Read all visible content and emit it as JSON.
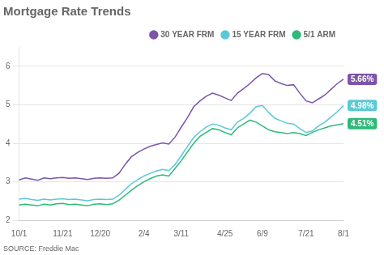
{
  "chart_data": {
    "type": "line",
    "title": "Mortgage Rate Trends",
    "categories": [
      "10/1",
      null,
      null,
      null,
      null,
      null,
      null,
      "11/21",
      null,
      null,
      null,
      null,
      null,
      "12/20",
      null,
      null,
      null,
      null,
      null,
      null,
      "2/4",
      null,
      null,
      null,
      null,
      null,
      "3/11",
      null,
      null,
      null,
      null,
      null,
      null,
      "4/25",
      null,
      null,
      null,
      null,
      null,
      "6/9",
      null,
      null,
      null,
      null,
      null,
      null,
      "7/21",
      null,
      null,
      null,
      null,
      null,
      "8/1"
    ],
    "series": [
      {
        "name": "30 YEAR FRM",
        "color": "#7b55a7",
        "values": [
          3.05,
          3.1,
          3.07,
          3.04,
          3.1,
          3.08,
          3.1,
          3.11,
          3.09,
          3.1,
          3.08,
          3.06,
          3.09,
          3.1,
          3.09,
          3.1,
          3.22,
          3.45,
          3.65,
          3.76,
          3.85,
          3.92,
          3.97,
          4.01,
          3.98,
          4.16,
          4.42,
          4.67,
          4.95,
          5.1,
          5.22,
          5.3,
          5.25,
          5.18,
          5.11,
          5.3,
          5.42,
          5.55,
          5.7,
          5.81,
          5.78,
          5.62,
          5.55,
          5.5,
          5.52,
          5.3,
          5.1,
          5.05,
          5.15,
          5.25,
          5.4,
          5.55,
          5.66
        ]
      },
      {
        "name": "15 YEAR FRM",
        "color": "#5bc9d5",
        "values": [
          2.55,
          2.57,
          2.54,
          2.52,
          2.55,
          2.53,
          2.55,
          2.56,
          2.54,
          2.55,
          2.53,
          2.51,
          2.54,
          2.55,
          2.54,
          2.55,
          2.65,
          2.8,
          2.95,
          3.05,
          3.15,
          3.22,
          3.28,
          3.32,
          3.29,
          3.45,
          3.68,
          3.92,
          4.15,
          4.3,
          4.42,
          4.5,
          4.47,
          4.4,
          4.35,
          4.55,
          4.65,
          4.78,
          4.95,
          4.98,
          4.8,
          4.65,
          4.58,
          4.52,
          4.5,
          4.38,
          4.28,
          4.32,
          4.45,
          4.55,
          4.68,
          4.82,
          4.98
        ]
      },
      {
        "name": "5/1 ARM",
        "color": "#2eba78",
        "values": [
          2.4,
          2.42,
          2.4,
          2.38,
          2.42,
          2.4,
          2.43,
          2.44,
          2.41,
          2.42,
          2.4,
          2.38,
          2.42,
          2.43,
          2.41,
          2.43,
          2.52,
          2.65,
          2.78,
          2.9,
          3.0,
          3.08,
          3.15,
          3.18,
          3.15,
          3.35,
          3.55,
          3.78,
          4.0,
          4.18,
          4.28,
          4.38,
          4.35,
          4.28,
          4.22,
          4.4,
          4.5,
          4.6,
          4.55,
          4.45,
          4.35,
          4.3,
          4.28,
          4.25,
          4.28,
          4.25,
          4.2,
          4.28,
          4.35,
          4.4,
          4.45,
          4.48,
          4.51
        ]
      }
    ],
    "ylim": [
      2.0,
      6.5
    ],
    "yticks": [
      2,
      3,
      4,
      5,
      6
    ],
    "grid": "y",
    "legend": "top",
    "annotations": [
      {
        "text": "5.66%",
        "y": 5.66,
        "color": "#7b55a7"
      },
      {
        "text": "4.98%",
        "y": 4.98,
        "color": "#5bc9d5"
      },
      {
        "text": "4.51%",
        "y": 4.51,
        "color": "#2eba78"
      },
      {
        "text": "SOURCE: Freddie Mac"
      }
    ]
  }
}
